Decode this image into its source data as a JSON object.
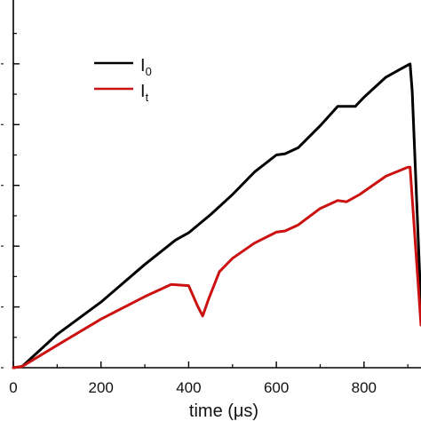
{
  "chart_data": {
    "type": "line",
    "xlabel": "time (μs)",
    "ylabel": "",
    "xlim": [
      0,
      930
    ],
    "ylim": [
      0,
      6.05
    ],
    "x_ticks": [
      0,
      200,
      400,
      600,
      800
    ],
    "x_tick_labels": [
      "0",
      "200",
      "400",
      "600",
      "800"
    ],
    "y_ticks": [
      0,
      1,
      2,
      3,
      4,
      5
    ],
    "grid": false,
    "legend_position": "top-left",
    "series": [
      {
        "name_base": "I",
        "name_sub": "0",
        "color": "#000000",
        "points": [
          [
            0,
            0
          ],
          [
            20,
            0.02
          ],
          [
            100,
            0.55
          ],
          [
            200,
            1.08
          ],
          [
            300,
            1.7
          ],
          [
            370,
            2.1
          ],
          [
            400,
            2.22
          ],
          [
            450,
            2.52
          ],
          [
            500,
            2.85
          ],
          [
            550,
            3.22
          ],
          [
            600,
            3.5
          ],
          [
            620,
            3.52
          ],
          [
            650,
            3.62
          ],
          [
            700,
            3.98
          ],
          [
            740,
            4.3
          ],
          [
            760,
            4.3
          ],
          [
            780,
            4.3
          ],
          [
            800,
            4.45
          ],
          [
            850,
            4.78
          ],
          [
            880,
            4.9
          ],
          [
            905,
            5.0
          ],
          [
            910,
            4.55
          ],
          [
            930,
            1.0
          ]
        ]
      },
      {
        "name_base": "I",
        "name_sub": "t",
        "color": "#cc1111",
        "points": [
          [
            0,
            0
          ],
          [
            20,
            0.02
          ],
          [
            100,
            0.37
          ],
          [
            200,
            0.8
          ],
          [
            300,
            1.17
          ],
          [
            360,
            1.37
          ],
          [
            400,
            1.35
          ],
          [
            420,
            1.02
          ],
          [
            432,
            0.85
          ],
          [
            445,
            1.12
          ],
          [
            470,
            1.58
          ],
          [
            500,
            1.8
          ],
          [
            550,
            2.05
          ],
          [
            600,
            2.23
          ],
          [
            620,
            2.25
          ],
          [
            650,
            2.35
          ],
          [
            700,
            2.62
          ],
          [
            740,
            2.75
          ],
          [
            760,
            2.73
          ],
          [
            790,
            2.85
          ],
          [
            850,
            3.15
          ],
          [
            900,
            3.3
          ],
          [
            905,
            3.3
          ],
          [
            930,
            0.7
          ]
        ]
      }
    ]
  }
}
